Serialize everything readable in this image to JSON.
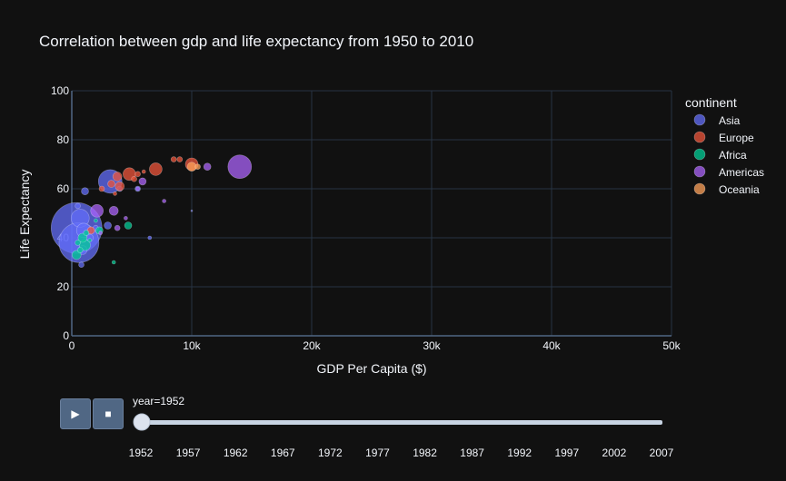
{
  "chart_data": {
    "type": "scatter",
    "title": "Correlation between gdp and life expectancy from 1950 to 2010",
    "xlabel": "GDP Per Capita ($)",
    "ylabel": "Life Expectancy",
    "xlim": [
      0,
      50000
    ],
    "ylim": [
      0,
      100
    ],
    "x_ticks": [
      "0",
      "10k",
      "20k",
      "30k",
      "40k",
      "50k"
    ],
    "y_ticks": [
      "0",
      "20",
      "40",
      "60",
      "80",
      "100"
    ],
    "grid": true,
    "marker_size_encodes": "population",
    "legend": {
      "title": "continent",
      "placement": "right",
      "items": [
        {
          "name": "Asia",
          "color": "#636efa"
        },
        {
          "name": "Europe",
          "color": "#ef553b"
        },
        {
          "name": "Africa",
          "color": "#00cc96"
        },
        {
          "name": "Americas",
          "color": "#ab63fa"
        },
        {
          "name": "Oceania",
          "color": "#ffa15a"
        }
      ]
    },
    "series": [
      {
        "name": "Asia",
        "color": "#636efa",
        "points": [
          {
            "x": 400,
            "y": 44,
            "size": 28
          },
          {
            "x": 600,
            "y": 38,
            "size": 22
          },
          {
            "x": 700,
            "y": 48,
            "size": 10
          },
          {
            "x": 1000,
            "y": 43,
            "size": 8
          },
          {
            "x": 1100,
            "y": 59,
            "size": 4
          },
          {
            "x": 900,
            "y": 35,
            "size": 5
          },
          {
            "x": 1500,
            "y": 40,
            "size": 4
          },
          {
            "x": 3200,
            "y": 63,
            "size": 13
          },
          {
            "x": 3000,
            "y": 45,
            "size": 4
          },
          {
            "x": 4000,
            "y": 60,
            "size": 3
          },
          {
            "x": 5500,
            "y": 60,
            "size": 3
          },
          {
            "x": 6500,
            "y": 40,
            "size": 2
          },
          {
            "x": 10000,
            "y": 51,
            "size": 1
          },
          {
            "x": 800,
            "y": 29,
            "size": 3
          },
          {
            "x": 2000,
            "y": 44,
            "size": 3
          },
          {
            "x": 500,
            "y": 53,
            "size": 3
          }
        ]
      },
      {
        "name": "Europe",
        "color": "#ef553b",
        "points": [
          {
            "x": 7000,
            "y": 68,
            "size": 7
          },
          {
            "x": 10000,
            "y": 70,
            "size": 7
          },
          {
            "x": 8500,
            "y": 72,
            "size": 3
          },
          {
            "x": 9000,
            "y": 72,
            "size": 3
          },
          {
            "x": 4800,
            "y": 66,
            "size": 7
          },
          {
            "x": 3800,
            "y": 65,
            "size": 5
          },
          {
            "x": 4000,
            "y": 61,
            "size": 5
          },
          {
            "x": 3300,
            "y": 62,
            "size": 4
          },
          {
            "x": 5500,
            "y": 66,
            "size": 3
          },
          {
            "x": 6000,
            "y": 67,
            "size": 2
          },
          {
            "x": 5200,
            "y": 64,
            "size": 3
          },
          {
            "x": 2500,
            "y": 60,
            "size": 3
          },
          {
            "x": 1600,
            "y": 43,
            "size": 4
          },
          {
            "x": 3600,
            "y": 58,
            "size": 2
          }
        ]
      },
      {
        "name": "Africa",
        "color": "#00cc96",
        "points": [
          {
            "x": 1100,
            "y": 37,
            "size": 6
          },
          {
            "x": 400,
            "y": 33,
            "size": 5
          },
          {
            "x": 900,
            "y": 40,
            "size": 5
          },
          {
            "x": 2300,
            "y": 43,
            "size": 4
          },
          {
            "x": 4700,
            "y": 45,
            "size": 4
          },
          {
            "x": 3500,
            "y": 30,
            "size": 2
          },
          {
            "x": 500,
            "y": 38,
            "size": 3
          },
          {
            "x": 700,
            "y": 35,
            "size": 3
          },
          {
            "x": 1200,
            "y": 42,
            "size": 3
          },
          {
            "x": 2000,
            "y": 47,
            "size": 2
          },
          {
            "x": 1500,
            "y": 39,
            "size": 2
          }
        ]
      },
      {
        "name": "Americas",
        "color": "#ab63fa",
        "points": [
          {
            "x": 14000,
            "y": 69,
            "size": 13
          },
          {
            "x": 11300,
            "y": 69,
            "size": 4
          },
          {
            "x": 2100,
            "y": 51,
            "size": 7
          },
          {
            "x": 3500,
            "y": 51,
            "size": 5
          },
          {
            "x": 5900,
            "y": 63,
            "size": 4
          },
          {
            "x": 3800,
            "y": 44,
            "size": 3
          },
          {
            "x": 7700,
            "y": 55,
            "size": 2
          },
          {
            "x": 5500,
            "y": 60,
            "size": 2
          },
          {
            "x": 2400,
            "y": 42,
            "size": 2
          },
          {
            "x": 4500,
            "y": 48,
            "size": 2
          }
        ]
      },
      {
        "name": "Oceania",
        "color": "#ffa15a",
        "points": [
          {
            "x": 10000,
            "y": 69,
            "size": 5
          },
          {
            "x": 10500,
            "y": 69,
            "size": 3
          }
        ]
      }
    ]
  },
  "animation": {
    "play_icon": "▶",
    "stop_icon": "■",
    "slider_label": "year=1952",
    "slider_value": "1952",
    "years": [
      "1952",
      "1957",
      "1962",
      "1967",
      "1972",
      "1977",
      "1982",
      "1987",
      "1992",
      "1997",
      "2002",
      "2007"
    ]
  }
}
